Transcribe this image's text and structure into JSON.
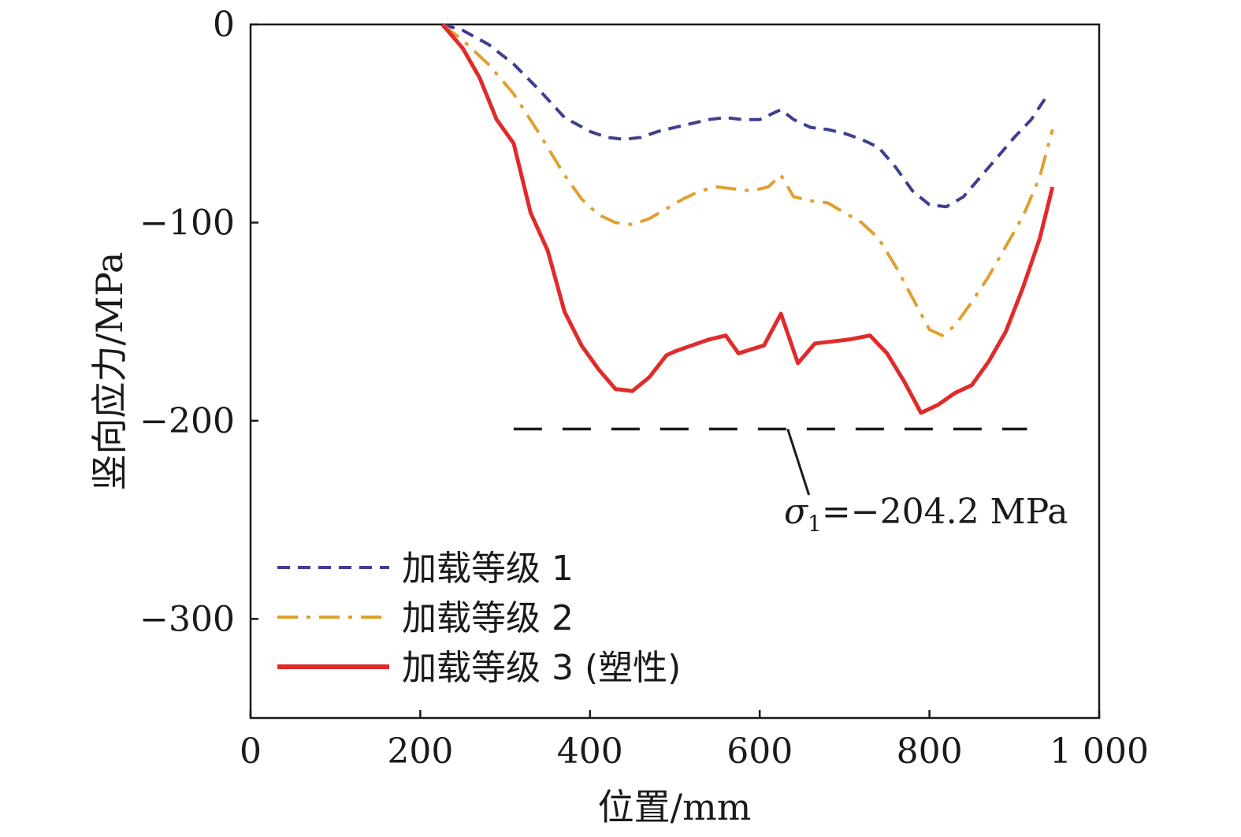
{
  "chart_data": {
    "type": "line",
    "xlabel": "位置/mm",
    "ylabel": "竖向应力/MPa",
    "xlim": [
      0,
      1000
    ],
    "ylim": [
      -350,
      0
    ],
    "x_ticks": [
      0,
      200,
      400,
      600,
      800,
      1000
    ],
    "x_tick_labels": [
      "0",
      "200",
      "400",
      "600",
      "800",
      "1 000"
    ],
    "y_ticks": [
      0,
      -100,
      -200,
      -300
    ],
    "y_tick_labels": [
      "0",
      "−100",
      "−200",
      "−300"
    ],
    "grid": false,
    "legend_position": "bottom-left",
    "series": [
      {
        "name": "加载等级 1",
        "color": "#3f3f8f",
        "style": "dashed",
        "x": [
          226,
          250,
          280,
          310,
          340,
          370,
          400,
          420,
          440,
          460,
          480,
          500,
          520,
          540,
          560,
          580,
          600,
          615,
          625,
          640,
          660,
          680,
          700,
          720,
          740,
          760,
          780,
          800,
          820,
          840,
          860,
          880,
          900,
          920,
          940
        ],
        "y": [
          0,
          -3,
          -10,
          -20,
          -33,
          -47,
          -54,
          -57,
          -58,
          -57,
          -54,
          -52,
          -50,
          -48,
          -47,
          -48,
          -48,
          -45,
          -43,
          -48,
          -52,
          -53,
          -55,
          -58,
          -62,
          -72,
          -84,
          -91,
          -92,
          -87,
          -77,
          -67,
          -57,
          -48,
          -35
        ]
      },
      {
        "name": "加载等级 2",
        "color": "#e0a030",
        "style": "dash-dot",
        "x": [
          226,
          250,
          280,
          310,
          340,
          370,
          390,
          410,
          430,
          450,
          470,
          490,
          510,
          530,
          550,
          570,
          590,
          610,
          625,
          640,
          660,
          680,
          700,
          720,
          740,
          760,
          780,
          800,
          815,
          830,
          850,
          870,
          890,
          910,
          930,
          945
        ],
        "y": [
          0,
          -8,
          -20,
          -35,
          -55,
          -76,
          -88,
          -96,
          -100,
          -101,
          -98,
          -93,
          -88,
          -84,
          -82,
          -83,
          -84,
          -82,
          -76,
          -87,
          -89,
          -90,
          -95,
          -100,
          -108,
          -122,
          -138,
          -154,
          -157,
          -152,
          -140,
          -127,
          -112,
          -97,
          -77,
          -53
        ]
      },
      {
        "name": "加载等级 3 (塑性)",
        "color": "#e02b2b",
        "style": "solid",
        "x": [
          226,
          250,
          270,
          290,
          310,
          330,
          350,
          370,
          390,
          410,
          430,
          450,
          470,
          490,
          500,
          520,
          540,
          560,
          575,
          590,
          605,
          625,
          645,
          665,
          685,
          705,
          730,
          750,
          770,
          790,
          810,
          830,
          850,
          870,
          890,
          910,
          930,
          945
        ],
        "y": [
          0,
          -12,
          -27,
          -48,
          -60,
          -95,
          -114,
          -145,
          -162,
          -174,
          -184,
          -185,
          -178,
          -167,
          -165,
          -162,
          -159,
          -157,
          -166,
          -164,
          -162,
          -146,
          -171,
          -161,
          -160,
          -159,
          -157,
          -166,
          -180,
          -196,
          -192,
          -186,
          -182,
          -170,
          -155,
          -133,
          -108,
          -82
        ]
      }
    ],
    "reference_line": {
      "y": -204.2,
      "x_range": [
        310,
        915
      ],
      "color": "#1a1a1a",
      "style": "long-dash",
      "annotation_symbol": "σ",
      "annotation_subscript": "1",
      "annotation_value": "=−204.2 MPa"
    }
  }
}
